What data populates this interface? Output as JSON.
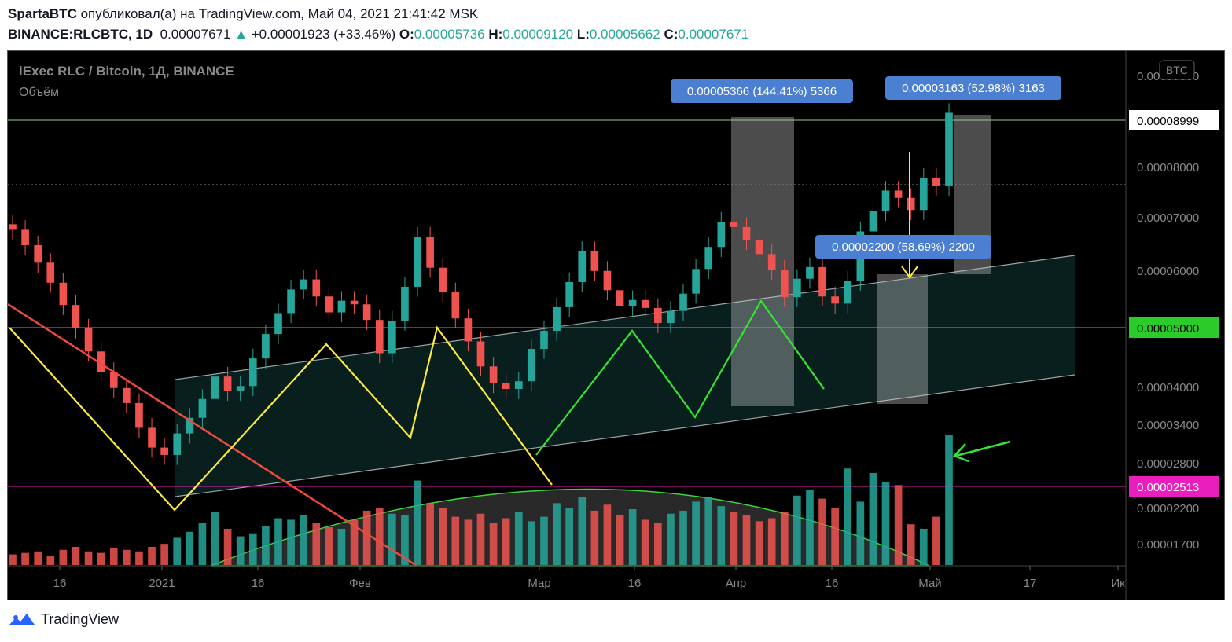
{
  "header": {
    "author": "SpartaBTC",
    "published_text": "опубликовал(а) на TradingView.com, Май 04, 2021 21:41:42 MSK",
    "symbol": "BINANCE:RLCBTC, 1D",
    "last": "0.00007671",
    "change": "+0.00001923 (+33.46%)",
    "o_label": "O:",
    "o_value": "0.00005736",
    "h_label": "H:",
    "h_value": "0.00009120",
    "l_label": "L:",
    "l_value": "0.00005662",
    "c_label": "C:",
    "c_value": "0.00007671"
  },
  "chart_title": "iExec RLC / Bitcoin, 1Д, BINANCE",
  "volume_label": "Объём",
  "currency_badge": "BTC",
  "footer": {
    "brand": "TradingView",
    "icon": "tradingview-logo-icon"
  },
  "colors": {
    "up": "#26a69a",
    "down": "#ef5350",
    "yellow": "#ffeb3b",
    "green_line": "#35e633",
    "red_line": "#f04a3c",
    "magenta": "#e91ebd",
    "price_tag_green": "#29cc29",
    "measure_box": "#4a7fd1"
  },
  "chart_data": {
    "type": "candlestick",
    "x_tick_labels": [
      "16",
      "2021",
      "16",
      "Фев",
      "Мар",
      "16",
      "Апр",
      "16",
      "Май",
      "17",
      "Ик"
    ],
    "y_tick_labels": [
      "0.00009000",
      "0.00008000",
      "0.00007000",
      "0.00006000",
      "0.00004000",
      "0.00003400",
      "0.00002800",
      "0.00002200",
      "0.00001700"
    ],
    "price_tags": [
      "0.00008999",
      "0.00005000",
      "0.00002513"
    ],
    "y_range": [
      1.5e-05,
      9.4e-05
    ],
    "y_scale": "log",
    "measures": [
      "0.00005366 (144.41%) 5366",
      "0.00003163 (52.98%) 3163",
      "0.00002200 (58.69%) 2200"
    ],
    "close_path": [
      5.05e-05,
      4.78e-05,
      4.49e-05,
      4.18e-05,
      3.86e-05,
      3.55e-05,
      3.27e-05,
      3.04e-05,
      2.87e-05,
      2.72e-05,
      2.49e-05,
      2.32e-05,
      2.26e-05,
      2.44e-05,
      2.58e-05,
      2.76e-05,
      2.99e-05,
      2.84e-05,
      2.89e-05,
      3.19e-05,
      3.48e-05,
      3.75e-05,
      4.08e-05,
      4.23e-05,
      3.98e-05,
      3.76e-05,
      3.92e-05,
      3.87e-05,
      3.66e-05,
      3.25e-05,
      3.65e-05,
      4.12e-05,
      4.93e-05,
      4.41e-05,
      4.04e-05,
      3.68e-05,
      3.39e-05,
      3.1e-05,
      2.92e-05,
      2.86e-05,
      2.94e-05,
      3.3e-05,
      3.52e-05,
      3.83e-05,
      4.19e-05,
      4.68e-05,
      4.36e-05,
      4.07e-05,
      3.84e-05,
      3.93e-05,
      3.82e-05,
      3.62e-05,
      3.78e-05,
      4.02e-05,
      4.39e-05,
      4.75e-05,
      5.2e-05,
      5.1e-05,
      4.87e-05,
      4.63e-05,
      4.38e-05,
      3.97e-05,
      4.24e-05,
      4.42e-05,
      3.98e-05,
      3.88e-05,
      4.21e-05,
      5.02e-05,
      5.4e-05,
      5.81e-05,
      5.66e-05,
      5.42e-05,
      6.08e-05,
      5.9e-05,
      7.67e-05
    ],
    "volume": [
      7,
      8,
      9,
      6,
      10,
      12,
      9,
      8,
      11,
      10,
      9,
      12,
      14,
      18,
      22,
      28,
      35,
      24,
      19,
      21,
      26,
      31,
      30,
      33,
      28,
      25,
      24,
      30,
      36,
      38,
      34,
      33,
      56,
      41,
      38,
      32,
      30,
      34,
      28,
      31,
      35,
      29,
      32,
      41,
      38,
      45,
      36,
      40,
      33,
      37,
      30,
      28,
      34,
      36,
      42,
      45,
      39,
      35,
      33,
      29,
      31,
      35,
      46,
      50,
      44,
      38,
      64,
      42,
      61,
      55,
      53,
      27,
      24,
      32,
      86
    ],
    "volume_unit": "relative"
  }
}
